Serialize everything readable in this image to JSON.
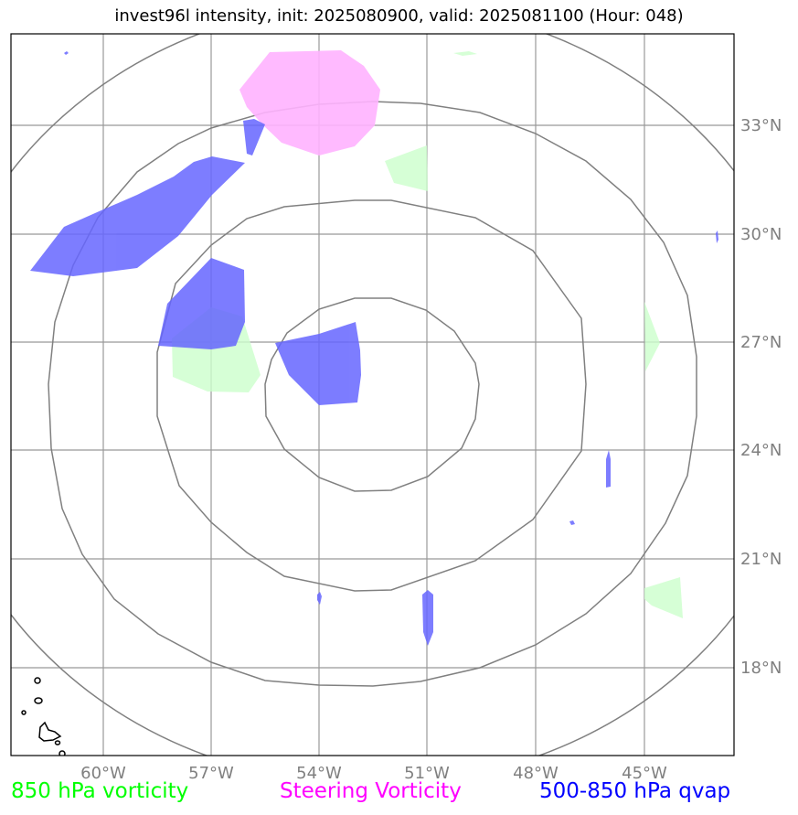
{
  "title": "invest96l intensity, init: 2025080900, valid: 2025081100 (Hour: 048)",
  "map": {
    "lon_labels": [
      "60°W",
      "57°W",
      "54°W",
      "51°W",
      "48°W",
      "45°W"
    ],
    "lat_labels": [
      "33°N",
      "30°N",
      "27°N",
      "24°N",
      "21°N",
      "18°N"
    ],
    "grid_color": "#999999",
    "ring_color": "#808080"
  },
  "legend": [
    {
      "label": "850 hPa vorticity",
      "color": "#00ff00"
    },
    {
      "label": "Steering Vorticity",
      "color": "#ff00ff"
    },
    {
      "label": "500-850 hPa qvap",
      "color": "#0000ff"
    }
  ],
  "fills": {
    "vorticity_850": "#ccffcc",
    "steering_vorticity": "#ffb3ff",
    "qvap": "#6666ff"
  }
}
